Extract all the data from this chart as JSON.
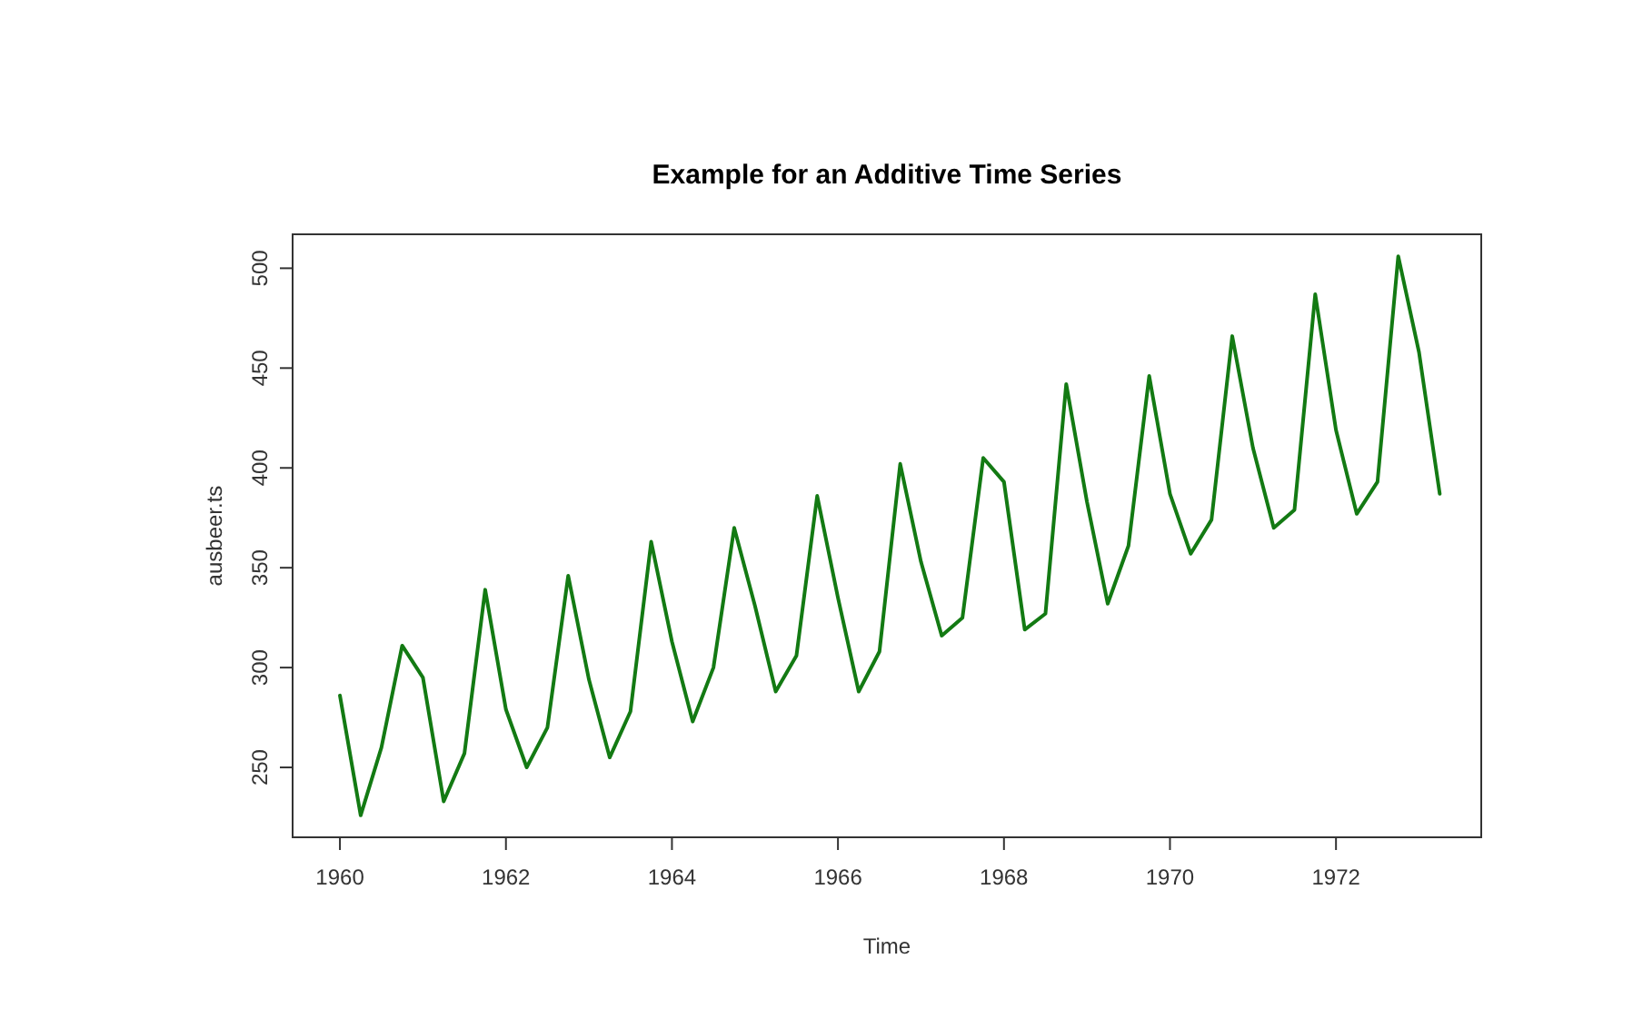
{
  "chart_data": {
    "type": "line",
    "title": "Example for an Additive Time Series",
    "xlabel": "Time",
    "ylabel": "ausbeer.ts",
    "x": [
      1960,
      1960.25,
      1960.5,
      1960.75,
      1961,
      1961.25,
      1961.5,
      1961.75,
      1962,
      1962.25,
      1962.5,
      1962.75,
      1963,
      1963.25,
      1963.5,
      1963.75,
      1964,
      1964.25,
      1964.5,
      1964.75,
      1965,
      1965.25,
      1965.5,
      1965.75,
      1966,
      1966.25,
      1966.5,
      1966.75,
      1967,
      1967.25,
      1967.5,
      1967.75,
      1968,
      1968.25,
      1968.5,
      1968.75,
      1969,
      1969.25,
      1969.5,
      1969.75,
      1970,
      1970.25,
      1970.5,
      1970.75,
      1971,
      1971.25,
      1971.5,
      1971.75,
      1972,
      1972.25,
      1972.5,
      1972.75,
      1973,
      1973.25
    ],
    "series": [
      {
        "color": "#137a13",
        "values": [
          286,
          226,
          260,
          311,
          295,
          233,
          257,
          339,
          279,
          250,
          270,
          346,
          294,
          255,
          278,
          363,
          313,
          273,
          300,
          370,
          331,
          288,
          306,
          386,
          335,
          288,
          308,
          402,
          353,
          316,
          325,
          405,
          393,
          319,
          327,
          442,
          383,
          332,
          361,
          446,
          387,
          357,
          374,
          466,
          410,
          370,
          379,
          487,
          419,
          377,
          393,
          506,
          458,
          387
        ]
      }
    ],
    "xlim": [
      1959.43,
      1973.75
    ],
    "ylim": [
      215,
      517
    ],
    "xticks": [
      1960,
      1962,
      1964,
      1966,
      1968,
      1970,
      1972
    ],
    "yticks": [
      250,
      300,
      350,
      400,
      450,
      500
    ],
    "grid": false,
    "marker": "none",
    "line_style": "solid"
  }
}
